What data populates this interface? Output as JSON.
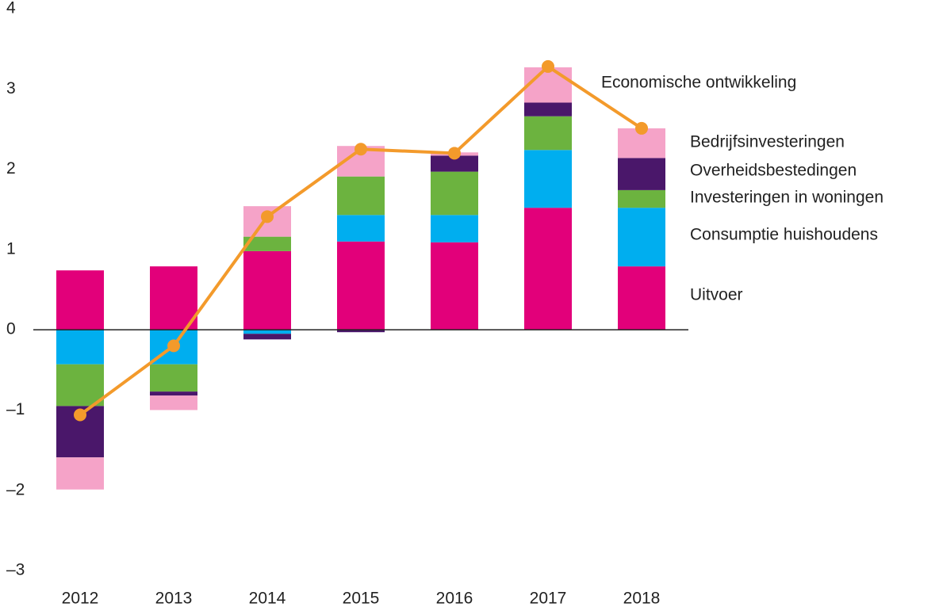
{
  "chart_data": {
    "type": "bar",
    "categories": [
      "2012",
      "2013",
      "2014",
      "2015",
      "2016",
      "2017",
      "2018"
    ],
    "series": [
      {
        "name": "Uitvoer",
        "color": "#e2007a",
        "values": [
          0.74,
          0.79,
          0.98,
          1.1,
          1.09,
          1.52,
          0.79
        ]
      },
      {
        "name": "Consumptie huishoudens",
        "color": "#00aeef",
        "values": [
          -0.43,
          -0.43,
          -0.05,
          0.33,
          0.34,
          0.72,
          0.73
        ]
      },
      {
        "name": "Investeringen in woningen",
        "color": "#6cb33f",
        "values": [
          -0.52,
          -0.34,
          0.18,
          0.48,
          0.54,
          0.42,
          0.22
        ]
      },
      {
        "name": "Overheidsbestedingen",
        "color": "#4a176a",
        "values": [
          -0.64,
          -0.05,
          -0.07,
          -0.03,
          0.2,
          0.17,
          0.4
        ]
      },
      {
        "name": "Bedrijfsinvesteringen",
        "color": "#f5a3c8",
        "values": [
          -0.4,
          -0.18,
          0.38,
          0.38,
          0.04,
          0.44,
          0.37
        ]
      },
      {
        "name": "Economische ontwikkeling",
        "color": "#f39a2b",
        "type": "line",
        "values": [
          -1.06,
          -0.2,
          1.41,
          2.25,
          2.2,
          3.28,
          2.51
        ]
      }
    ],
    "ylim": [
      -3,
      4
    ],
    "yticks": [
      {
        "value": -3,
        "label": "–3"
      },
      {
        "value": -2,
        "label": "–2"
      },
      {
        "value": -1,
        "label": "–1"
      },
      0,
      1,
      2,
      3,
      4
    ],
    "grid": false
  }
}
